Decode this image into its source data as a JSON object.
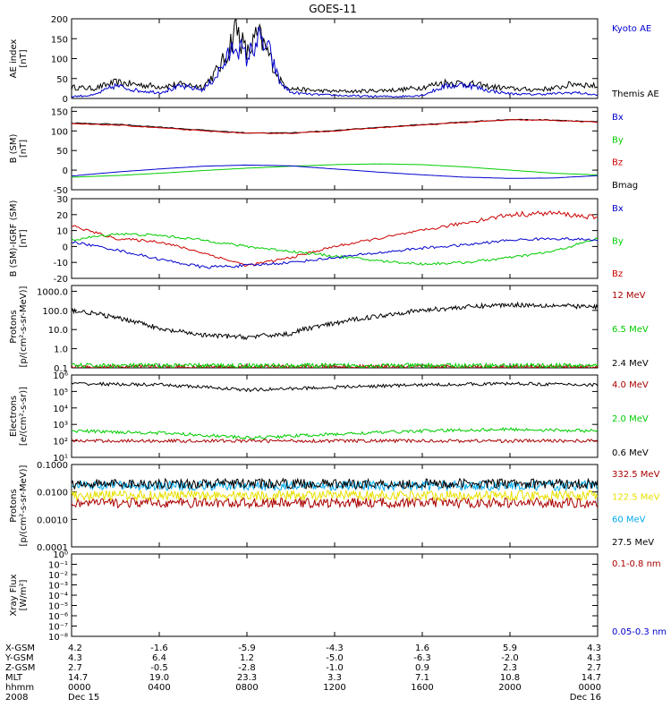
{
  "title": "GOES-11",
  "x_tick_positions": [
    0,
    4,
    8,
    12,
    16,
    20,
    24
  ],
  "panels": [
    {
      "id": "ae",
      "ylabel": [
        "AE index",
        "[nT]"
      ],
      "scale": "linear",
      "ylim": [
        0,
        200
      ],
      "ticks": [
        0,
        50,
        100,
        150,
        200
      ],
      "tick_labels": [
        "0",
        "50",
        "100",
        "150",
        "200"
      ],
      "legend": [
        {
          "label": "Kyoto AE",
          "color": "#0000cc"
        },
        {
          "label": "Themis AE",
          "color": "#000000"
        }
      ]
    },
    {
      "id": "b_sm",
      "ylabel": [
        "B (SM)",
        "[nT]"
      ],
      "scale": "linear",
      "ylim": [
        -50,
        160
      ],
      "ticks": [
        -50,
        0,
        50,
        100,
        150
      ],
      "tick_labels": [
        "-50",
        "0",
        "50",
        "100",
        "150"
      ],
      "legend": [
        {
          "label": "Bx",
          "color": "#0000cc"
        },
        {
          "label": "By",
          "color": "#00cc00"
        },
        {
          "label": "Bz",
          "color": "#cc0000"
        },
        {
          "label": "Bmag",
          "color": "#000000"
        }
      ]
    },
    {
      "id": "b_igrf",
      "ylabel": [
        "B (SM)-IGRF (SM)",
        "[nT]"
      ],
      "scale": "linear",
      "ylim": [
        -20,
        30
      ],
      "ticks": [
        -20,
        -10,
        0,
        10,
        20,
        30
      ],
      "tick_labels": [
        "-20",
        "-10",
        "0",
        "10",
        "20",
        "30"
      ],
      "legend": [
        {
          "label": "Bx",
          "color": "#0000cc"
        },
        {
          "label": "By",
          "color": "#00cc00"
        },
        {
          "label": "Bz",
          "color": "#cc0000"
        }
      ]
    },
    {
      "id": "protons_low",
      "ylabel": [
        "Protons",
        "[p/(cm²-s-sr-MeV)]"
      ],
      "scale": "log",
      "ylim": [
        0.1,
        2000
      ],
      "ticks": [
        0.1,
        1,
        10,
        100,
        1000
      ],
      "tick_labels": [
        "0.1",
        "1.0",
        "10.0",
        "100.0",
        "1000.0"
      ],
      "legend": [
        {
          "label": "12 MeV",
          "color": "#aa0000"
        },
        {
          "label": "6.5 MeV",
          "color": "#00cc00"
        },
        {
          "label": "2.4 MeV",
          "color": "#000000"
        }
      ]
    },
    {
      "id": "electrons",
      "ylabel": [
        "Electrons",
        "[e/(cm²-s-sr)]"
      ],
      "scale": "log",
      "ylim": [
        10,
        1000000
      ],
      "ticks": [
        10,
        100,
        1000,
        10000,
        100000,
        1000000
      ],
      "tick_labels": [
        "10¹",
        "10²",
        "10³",
        "10⁴",
        "10⁵",
        "10⁶"
      ],
      "legend": [
        {
          "label": "4.0 MeV",
          "color": "#aa0000"
        },
        {
          "label": "2.0 MeV",
          "color": "#00cc00"
        },
        {
          "label": "0.6 MeV",
          "color": "#000000"
        }
      ]
    },
    {
      "id": "protons_high",
      "ylabel": [
        "Protons",
        "[p/(cm²-s-sr-MeV)]"
      ],
      "scale": "log",
      "ylim": [
        0.0001,
        0.1
      ],
      "ticks": [
        0.0001,
        0.001,
        0.01,
        0.1
      ],
      "tick_labels": [
        "0.0001",
        "0.0010",
        "0.0100",
        "0.1000"
      ],
      "legend": [
        {
          "label": "332.5 MeV",
          "color": "#aa0000"
        },
        {
          "label": "122.5 MeV",
          "color": "#e8e000"
        },
        {
          "label": "60 MeV",
          "color": "#00aaee"
        },
        {
          "label": "27.5 MeV",
          "color": "#000000"
        }
      ]
    },
    {
      "id": "xray",
      "ylabel": [
        "Xray Flux",
        "[W/m²]"
      ],
      "scale": "log",
      "ylim": [
        1e-08,
        1
      ],
      "ticks": [
        1e-08,
        1e-07,
        1e-06,
        1e-05,
        0.0001,
        0.001,
        0.01,
        0.1,
        1
      ],
      "tick_labels": [
        "10⁻⁸",
        "10⁻⁷",
        "10⁻⁶",
        "10⁻⁵",
        "10⁻⁴",
        "10⁻³",
        "10⁻²",
        "10⁻¹",
        "10⁰"
      ],
      "legend": [
        {
          "label": "0.1-0.8 nm",
          "color": "#aa0000"
        },
        {
          "label": "0.05-0.3 nm",
          "color": "#0000cc"
        }
      ]
    }
  ],
  "ephemeris": [
    {
      "label": "X-GSM",
      "values": [
        "4.2",
        "-1.6",
        "-5.9",
        "-4.3",
        "1.6",
        "5.9",
        "4.3"
      ]
    },
    {
      "label": "Y-GSM",
      "values": [
        "4.3",
        "6.4",
        "1.2",
        "-5.0",
        "-6.3",
        "-2.0",
        "4.3"
      ]
    },
    {
      "label": "Z-GSM",
      "values": [
        "2.7",
        "-0.5",
        "-2.8",
        "-1.0",
        "0.9",
        "2.3",
        "2.7"
      ]
    },
    {
      "label": "MLT",
      "values": [
        "14.7",
        "19.0",
        "23.3",
        "3.3",
        "7.1",
        "10.8",
        "14.7"
      ]
    },
    {
      "label": "hhmm",
      "values": [
        "0000",
        "0400",
        "0800",
        "1200",
        "1600",
        "2000",
        "0000"
      ]
    },
    {
      "label": "2008",
      "values": [
        "Dec 15",
        "",
        "",
        "",
        "",
        "",
        "Dec 16"
      ]
    }
  ],
  "chart_data": [
    {
      "type": "line",
      "x_units": "hours UT from 2008 Dec 15 00:00",
      "ylabel": "AE index [nT]",
      "ylim": [
        0,
        200
      ],
      "series": [
        {
          "name": "Kyoto AE",
          "color": "#0000cc",
          "x": [
            0,
            1,
            2,
            3,
            4,
            5,
            6,
            6.5,
            7,
            7.5,
            8,
            8.5,
            9,
            9.5,
            10,
            11,
            12,
            13,
            14,
            15,
            16,
            17,
            18,
            19,
            20,
            21,
            22,
            23,
            24
          ],
          "y": [
            5,
            8,
            32,
            20,
            15,
            30,
            22,
            50,
            90,
            140,
            100,
            150,
            120,
            40,
            15,
            10,
            8,
            6,
            5,
            5,
            8,
            30,
            35,
            20,
            12,
            10,
            12,
            15,
            8
          ]
        },
        {
          "name": "Themis AE",
          "color": "#000000",
          "x": [
            0,
            1,
            2,
            3,
            4,
            5,
            6,
            6.5,
            7,
            7.5,
            8,
            8.5,
            9,
            9.5,
            10,
            11,
            12,
            13,
            14,
            15,
            16,
            17,
            18,
            19,
            20,
            21,
            22,
            23,
            24
          ],
          "y": [
            28,
            25,
            40,
            35,
            30,
            35,
            30,
            60,
            100,
            180,
            110,
            160,
            110,
            45,
            25,
            20,
            18,
            18,
            20,
            22,
            28,
            40,
            38,
            30,
            25,
            22,
            25,
            38,
            30
          ]
        }
      ]
    },
    {
      "type": "line",
      "x_units": "hours UT from 2008 Dec 15 00:00",
      "ylabel": "B (SM) [nT]",
      "ylim": [
        -50,
        160
      ],
      "series": [
        {
          "name": "Bx",
          "color": "#0000cc",
          "x": [
            0,
            2,
            4,
            6,
            8,
            10,
            12,
            14,
            16,
            18,
            20,
            22,
            24
          ],
          "y": [
            -15,
            -5,
            3,
            10,
            13,
            11,
            3,
            -5,
            -12,
            -18,
            -21,
            -20,
            -14
          ]
        },
        {
          "name": "By",
          "color": "#00cc00",
          "x": [
            0,
            2,
            4,
            6,
            8,
            10,
            12,
            14,
            16,
            18,
            20,
            22,
            24
          ],
          "y": [
            -18,
            -14,
            -8,
            -1,
            5,
            10,
            14,
            16,
            14,
            8,
            0,
            -8,
            -12
          ]
        },
        {
          "name": "Bz",
          "color": "#cc0000",
          "x": [
            0,
            2,
            4,
            6,
            8,
            10,
            12,
            14,
            16,
            18,
            20,
            22,
            24
          ],
          "y": [
            118,
            115,
            108,
            100,
            94,
            94,
            100,
            108,
            115,
            122,
            128,
            127,
            122
          ]
        },
        {
          "name": "Bmag",
          "color": "#000000",
          "x": [
            0,
            2,
            4,
            6,
            8,
            10,
            12,
            14,
            16,
            18,
            20,
            22,
            24
          ],
          "y": [
            120,
            117,
            110,
            102,
            95,
            95,
            101,
            109,
            116,
            123,
            129,
            128,
            123
          ]
        }
      ]
    },
    {
      "type": "line",
      "x_units": "hours UT from 2008 Dec 15 00:00",
      "ylabel": "B (SM)-IGRF (SM) [nT]",
      "ylim": [
        -20,
        30
      ],
      "series": [
        {
          "name": "Bx",
          "color": "#0000cc",
          "x": [
            0,
            2,
            4,
            6,
            8,
            10,
            12,
            14,
            16,
            18,
            20,
            22,
            24
          ],
          "y": [
            3,
            -2,
            -8,
            -13,
            -12,
            -10,
            -7,
            -4,
            -1,
            1,
            4,
            5,
            4
          ]
        },
        {
          "name": "By",
          "color": "#00cc00",
          "x": [
            0,
            2,
            4,
            6,
            8,
            10,
            12,
            14,
            16,
            18,
            20,
            22,
            24
          ],
          "y": [
            4,
            8,
            7,
            4,
            0,
            -3,
            -6,
            -9,
            -11,
            -10,
            -7,
            -3,
            5
          ]
        },
        {
          "name": "Bz",
          "color": "#cc0000",
          "x": [
            0,
            2,
            4,
            6,
            8,
            10,
            12,
            14,
            16,
            18,
            20,
            22,
            24
          ],
          "y": [
            13,
            5,
            3,
            -4,
            -12,
            -7,
            0,
            5,
            10,
            15,
            20,
            21,
            18
          ]
        }
      ]
    },
    {
      "type": "line",
      "x_units": "hours UT from 2008 Dec 15 00:00",
      "ylabel": "Protons [p/(cm2-s-sr-MeV)]",
      "scale": "log",
      "ylim": [
        0.1,
        2000
      ],
      "series": [
        {
          "name": "2.4 MeV",
          "color": "#000000",
          "x": [
            0,
            2,
            4,
            6,
            8,
            10,
            12,
            14,
            16,
            18,
            20,
            22,
            24
          ],
          "y": [
            100,
            40,
            10,
            5,
            4,
            6,
            20,
            50,
            100,
            150,
            200,
            180,
            150
          ]
        },
        {
          "name": "6.5 MeV",
          "color": "#00cc00",
          "x": [
            0,
            6,
            12,
            18,
            24
          ],
          "y": [
            0.13,
            0.13,
            0.13,
            0.13,
            0.13
          ]
        },
        {
          "name": "12 MeV",
          "color": "#aa0000",
          "x": [
            0,
            6,
            12,
            18,
            24
          ],
          "y": [
            0.11,
            0.11,
            0.11,
            0.11,
            0.11
          ]
        }
      ]
    },
    {
      "type": "line",
      "x_units": "hours UT from 2008 Dec 15 00:00",
      "ylabel": "Electrons [e/(cm2-s-sr)]",
      "scale": "log",
      "ylim": [
        10,
        1000000
      ],
      "series": [
        {
          "name": "0.6 MeV",
          "color": "#000000",
          "x": [
            0,
            4,
            8,
            12,
            16,
            20,
            24
          ],
          "y": [
            300000,
            250000,
            120000,
            180000,
            250000,
            300000,
            250000
          ]
        },
        {
          "name": "2.0 MeV",
          "color": "#00cc00",
          "x": [
            0,
            4,
            8,
            12,
            16,
            20,
            24
          ],
          "y": [
            400,
            300,
            150,
            250,
            400,
            500,
            400
          ]
        },
        {
          "name": "4.0 MeV",
          "color": "#aa0000",
          "x": [
            0,
            4,
            8,
            12,
            16,
            20,
            24
          ],
          "y": [
            100,
            100,
            100,
            100,
            100,
            100,
            100
          ]
        }
      ]
    },
    {
      "type": "line",
      "x_units": "hours UT from 2008 Dec 15 00:00",
      "ylabel": "Protons [p/(cm2-s-sr-MeV)]",
      "scale": "log",
      "ylim": [
        0.0001,
        0.1
      ],
      "series": [
        {
          "name": "27.5 MeV",
          "color": "#000000",
          "x": [
            0,
            6,
            12,
            18,
            24
          ],
          "y": [
            0.02,
            0.02,
            0.02,
            0.02,
            0.02
          ]
        },
        {
          "name": "60 MeV",
          "color": "#00aaee",
          "x": [
            0,
            6,
            12,
            18,
            24
          ],
          "y": [
            0.017,
            0.017,
            0.017,
            0.017,
            0.017
          ]
        },
        {
          "name": "122.5 MeV",
          "color": "#e8e000",
          "x": [
            0,
            6,
            12,
            18,
            24
          ],
          "y": [
            0.0075,
            0.0075,
            0.0075,
            0.0075,
            0.0075
          ]
        },
        {
          "name": "332.5 MeV",
          "color": "#aa0000",
          "x": [
            0,
            6,
            12,
            18,
            24
          ],
          "y": [
            0.004,
            0.004,
            0.004,
            0.004,
            0.004
          ]
        }
      ]
    },
    {
      "type": "line",
      "x_units": "hours UT from 2008 Dec 15 00:00",
      "ylabel": "Xray Flux [W/m2]",
      "scale": "log",
      "ylim": [
        1e-08,
        1
      ],
      "series": []
    }
  ]
}
